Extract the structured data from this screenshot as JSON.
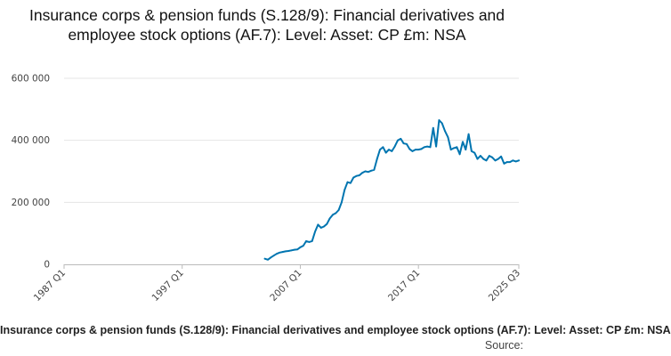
{
  "chart_data": {
    "type": "line",
    "title": "Insurance corps & pension funds (S.128/9): Financial derivatives and employee stock options (AF.7): Level: Asset: CP £m: NSA",
    "xlabel": "",
    "ylabel": "",
    "ylim": [
      0,
      600000
    ],
    "yticks": [
      0,
      200000,
      400000,
      600000
    ],
    "ytick_labels": [
      "0",
      "200 000",
      "400 000",
      "600 000"
    ],
    "xlim": [
      "1987 Q1",
      "2025 Q3"
    ],
    "xtick_labels": [
      "1987 Q1",
      "1997 Q1",
      "2007 Q1",
      "2017 Q1",
      "2025 Q3"
    ],
    "grid": true,
    "line_color": "#0075b0",
    "series": [
      {
        "x": [
          "2004 Q1",
          "2004 Q2",
          "2004 Q3",
          "2004 Q4",
          "2005 Q1",
          "2005 Q2",
          "2005 Q3",
          "2005 Q4",
          "2006 Q1",
          "2006 Q2",
          "2006 Q3",
          "2006 Q4",
          "2007 Q1",
          "2007 Q2",
          "2007 Q3",
          "2007 Q4",
          "2008 Q1",
          "2008 Q2",
          "2008 Q3",
          "2008 Q4",
          "2009 Q1",
          "2009 Q2",
          "2009 Q3",
          "2009 Q4",
          "2010 Q1",
          "2010 Q2",
          "2010 Q3",
          "2010 Q4",
          "2011 Q1",
          "2011 Q2",
          "2011 Q3",
          "2011 Q4",
          "2012 Q1",
          "2012 Q2",
          "2012 Q3",
          "2012 Q4",
          "2013 Q1",
          "2013 Q2",
          "2013 Q3",
          "2013 Q4",
          "2014 Q1",
          "2014 Q2",
          "2014 Q3",
          "2014 Q4",
          "2015 Q1",
          "2015 Q2",
          "2015 Q3",
          "2015 Q4",
          "2016 Q1",
          "2016 Q2",
          "2016 Q3",
          "2016 Q4",
          "2017 Q1",
          "2017 Q2",
          "2017 Q3",
          "2017 Q4",
          "2018 Q1",
          "2018 Q2",
          "2018 Q3",
          "2018 Q4",
          "2019 Q1",
          "2019 Q2",
          "2019 Q3",
          "2019 Q4",
          "2020 Q1",
          "2020 Q2",
          "2020 Q3",
          "2020 Q4",
          "2021 Q1",
          "2021 Q2",
          "2021 Q3",
          "2021 Q4",
          "2022 Q1",
          "2022 Q2",
          "2022 Q3",
          "2022 Q4",
          "2023 Q1",
          "2023 Q2",
          "2023 Q3",
          "2023 Q4",
          "2024 Q1",
          "2024 Q2",
          "2024 Q3",
          "2024 Q4",
          "2025 Q1",
          "2025 Q2",
          "2025 Q3"
        ],
        "values": [
          18000,
          15000,
          22000,
          28000,
          34000,
          38000,
          40000,
          42000,
          43000,
          45000,
          47000,
          48000,
          55000,
          60000,
          75000,
          72000,
          75000,
          105000,
          128000,
          118000,
          122000,
          130000,
          148000,
          160000,
          165000,
          175000,
          200000,
          240000,
          265000,
          262000,
          280000,
          285000,
          287000,
          295000,
          300000,
          298000,
          302000,
          305000,
          340000,
          370000,
          378000,
          360000,
          370000,
          365000,
          380000,
          400000,
          405000,
          390000,
          388000,
          372000,
          365000,
          370000,
          370000,
          372000,
          378000,
          380000,
          378000,
          440000,
          380000,
          465000,
          455000,
          430000,
          410000,
          370000,
          375000,
          378000,
          355000,
          395000,
          370000,
          420000,
          365000,
          360000,
          340000,
          350000,
          340000,
          335000,
          350000,
          345000,
          335000,
          340000,
          348000,
          325000,
          330000,
          330000,
          335000,
          332000,
          335000
        ]
      }
    ]
  },
  "footer": {
    "series_label": "Insurance corps & pension funds (S.128/9): Financial derivatives and employee stock options (AF.7): Level: Asset: CP £m: NSA",
    "source_label": "Source:"
  }
}
